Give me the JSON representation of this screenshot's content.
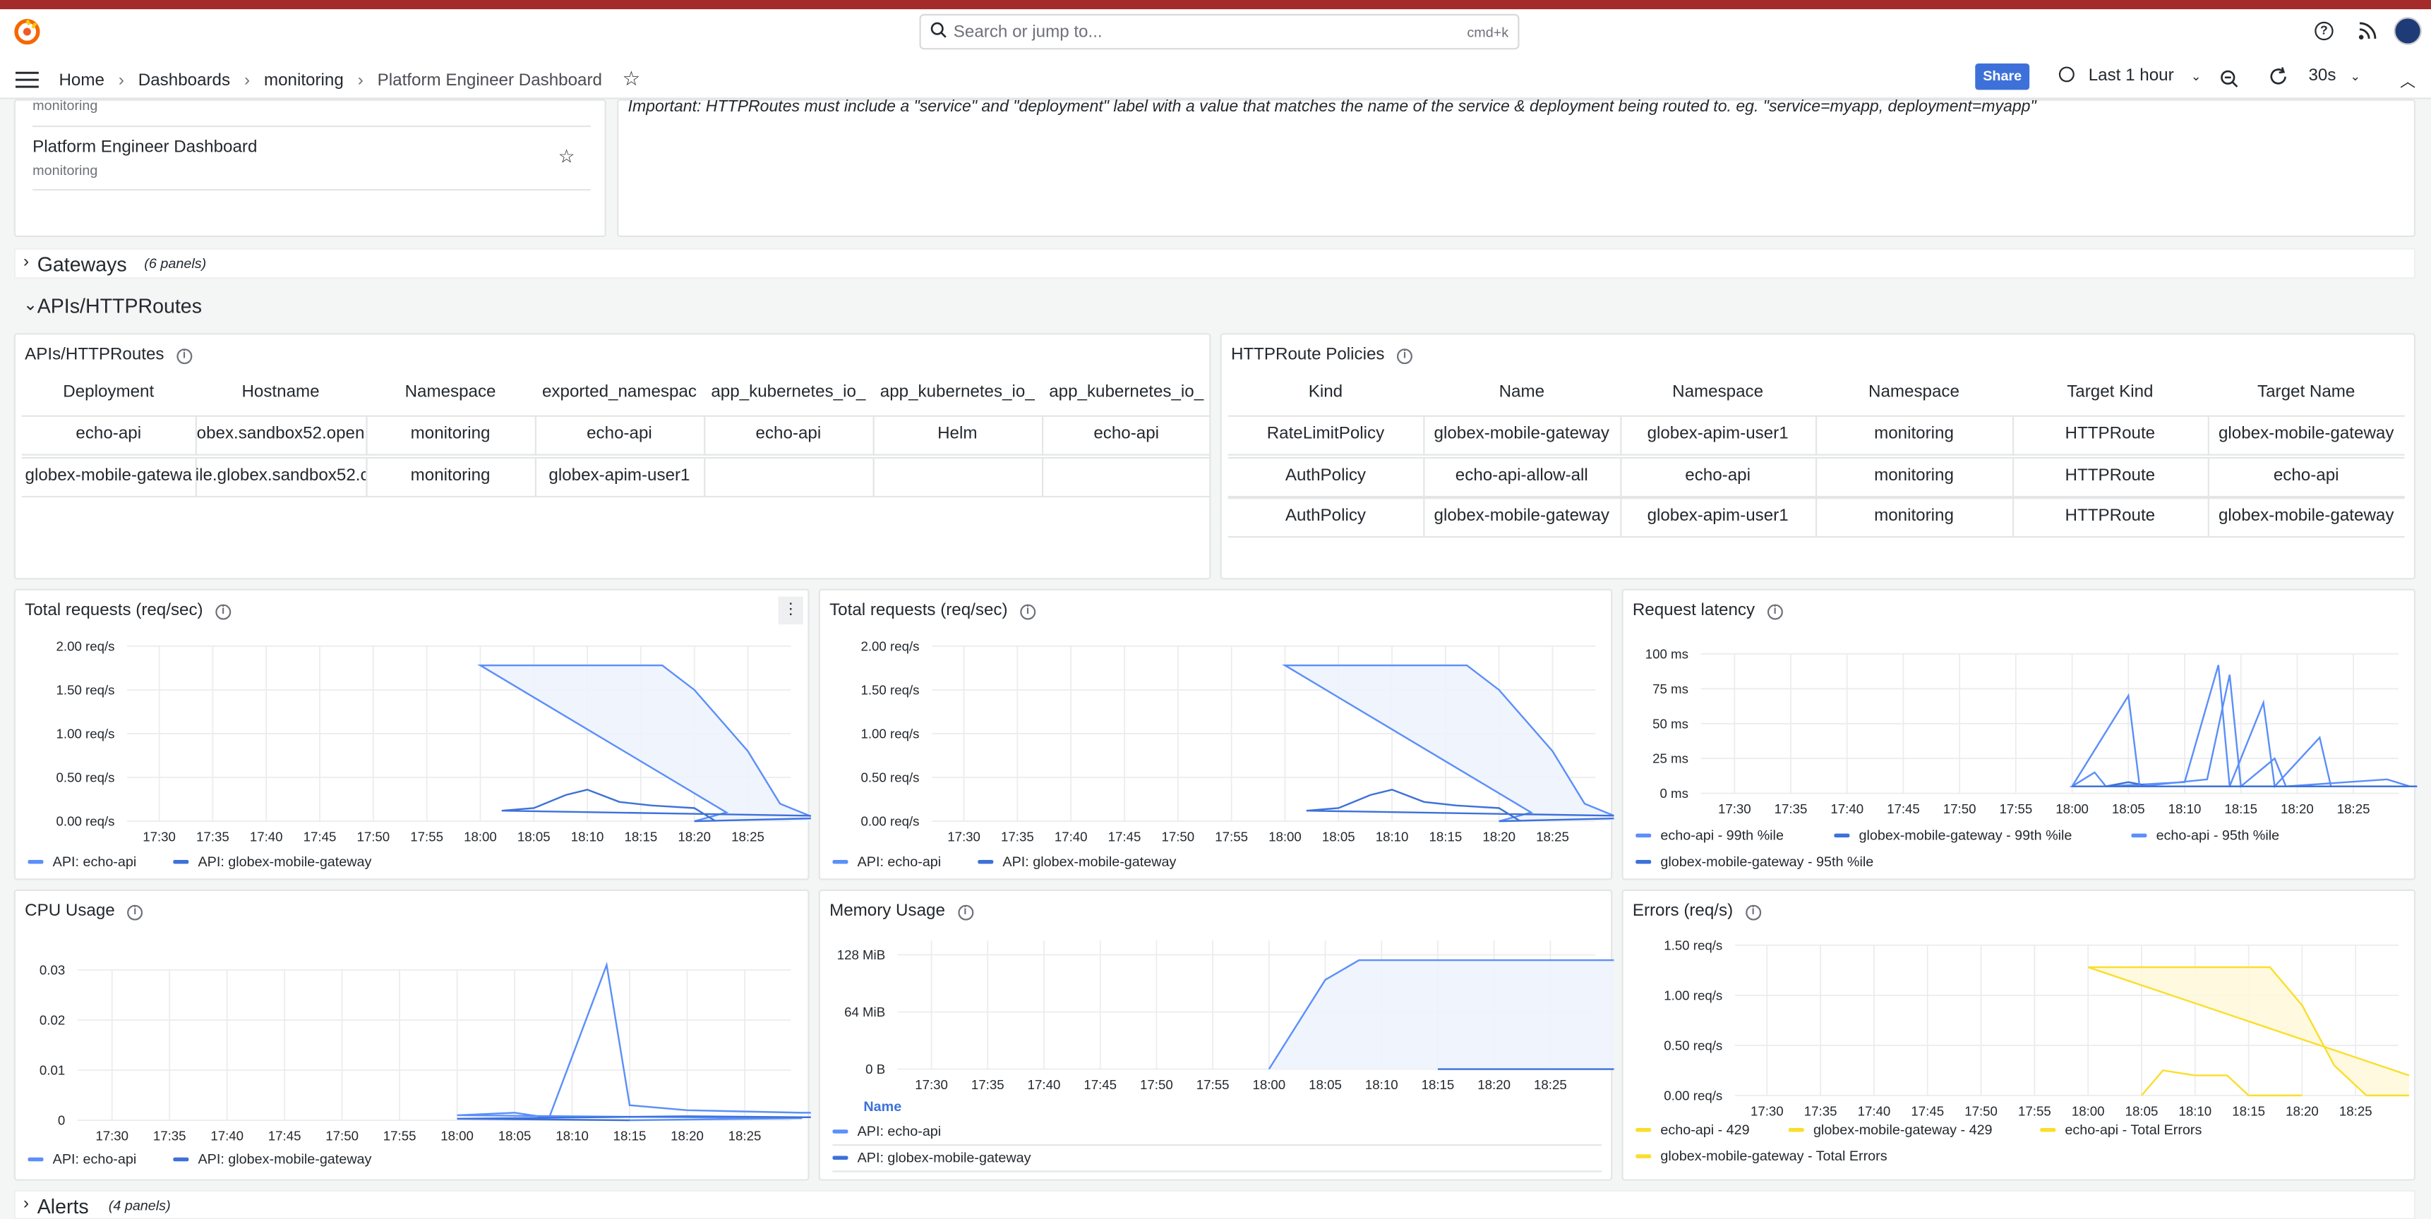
{
  "app": {
    "search_placeholder": "Search or jump to...",
    "search_shortcut": "cmd+k"
  },
  "breadcrumb": [
    "Home",
    "Dashboards",
    "monitoring",
    "Platform Engineer Dashboard"
  ],
  "toolbar": {
    "share": "Share",
    "time_range": "Last 1 hour",
    "refresh": "30s"
  },
  "list_panel": {
    "items": [
      {
        "folder": "monitoring"
      },
      {
        "title": "Platform Engineer Dashboard",
        "folder": "monitoring"
      }
    ]
  },
  "note": "Important: HTTPRoutes must include a \"service\" and \"deployment\" label with a value that matches the name of the service & deployment being routed to. eg. \"service=myapp, deployment=myapp\"",
  "rows": {
    "gateways": {
      "title": "Gateways",
      "count": "(6 panels)"
    },
    "apis": {
      "title": "APIs/HTTPRoutes"
    },
    "alerts": {
      "title": "Alerts",
      "count": "(4 panels)"
    }
  },
  "apis_table": {
    "title": "APIs/HTTPRoutes",
    "columns": [
      "Deployment",
      "Hostname",
      "Namespace",
      "exported_namespac",
      "app_kubernetes_io_",
      "app_kubernetes_io_",
      "app_kubernetes_io_"
    ],
    "rows": [
      [
        "echo-api",
        "obex.sandbox52.open",
        "monitoring",
        "echo-api",
        "echo-api",
        "Helm",
        "echo-api"
      ],
      [
        "globex-mobile-gatewa",
        "ile.globex.sandbox52.c",
        "monitoring",
        "globex-apim-user1",
        "",
        "",
        ""
      ]
    ]
  },
  "policies_table": {
    "title": "HTTPRoute Policies",
    "columns": [
      "Kind",
      "Name",
      "Namespace",
      "Namespace",
      "Target Kind",
      "Target Name"
    ],
    "rows": [
      [
        "RateLimitPolicy",
        "globex-mobile-gateway",
        "globex-apim-user1",
        "monitoring",
        "HTTPRoute",
        "globex-mobile-gateway"
      ],
      [
        "AuthPolicy",
        "echo-api-allow-all",
        "echo-api",
        "monitoring",
        "HTTPRoute",
        "echo-api"
      ],
      [
        "AuthPolicy",
        "globex-mobile-gateway",
        "globex-apim-user1",
        "monitoring",
        "HTTPRoute",
        "globex-mobile-gateway"
      ]
    ]
  },
  "colors": {
    "blue": "#5b8ff9",
    "blue_fill": "#eef3fd",
    "yellow": "#fade2a",
    "yellow_fill": "#fef8dc",
    "grid": "#ececee"
  },
  "chart_data": [
    {
      "id": "req1",
      "type": "line",
      "title": "Total requests (req/sec)",
      "x": [
        "17:30",
        "17:35",
        "17:40",
        "17:45",
        "17:50",
        "17:55",
        "18:00",
        "18:05",
        "18:10",
        "18:15",
        "18:20",
        "18:25"
      ],
      "yticks": [
        "0.00 req/s",
        "0.50 req/s",
        "1.00 req/s",
        "1.50 req/s",
        "2.00 req/s"
      ],
      "ylim": [
        0,
        2
      ],
      "series": [
        {
          "name": "API: echo-api",
          "fill": true,
          "points": [
            [
              17.8,
              0
            ],
            [
              17.83,
              0.1
            ],
            [
              18.0,
              1.78
            ],
            [
              18.17,
              1.78
            ],
            [
              18.2,
              1.5
            ],
            [
              18.25,
              0.8
            ],
            [
              18.28,
              0.2
            ],
            [
              18.32,
              0
            ]
          ]
        },
        {
          "name": "API: globex-mobile-gateway",
          "fill": false,
          "points": [
            [
              17.8,
              0
            ],
            [
              17.97,
              0.05
            ],
            [
              18.02,
              0.12
            ],
            [
              18.05,
              0.15
            ],
            [
              18.08,
              0.3
            ],
            [
              18.1,
              0.36
            ],
            [
              18.13,
              0.22
            ],
            [
              18.16,
              0.18
            ],
            [
              18.2,
              0.15
            ],
            [
              18.22,
              0
            ]
          ]
        }
      ]
    },
    {
      "id": "req2",
      "type": "line",
      "title": "Total requests (req/sec)",
      "x": [
        "17:30",
        "17:35",
        "17:40",
        "17:45",
        "17:50",
        "17:55",
        "18:00",
        "18:05",
        "18:10",
        "18:15",
        "18:20",
        "18:25"
      ],
      "yticks": [
        "0.00 req/s",
        "0.50 req/s",
        "1.00 req/s",
        "1.50 req/s",
        "2.00 req/s"
      ],
      "ylim": [
        0,
        2
      ],
      "series": [
        {
          "name": "API: echo-api",
          "fill": true,
          "points": [
            [
              17.8,
              0
            ],
            [
              17.83,
              0.1
            ],
            [
              18.0,
              1.78
            ],
            [
              18.17,
              1.78
            ],
            [
              18.2,
              1.5
            ],
            [
              18.25,
              0.8
            ],
            [
              18.28,
              0.2
            ],
            [
              18.32,
              0
            ]
          ]
        },
        {
          "name": "API: globex-mobile-gateway",
          "fill": false,
          "points": [
            [
              17.8,
              0
            ],
            [
              17.97,
              0.05
            ],
            [
              18.02,
              0.12
            ],
            [
              18.05,
              0.15
            ],
            [
              18.08,
              0.3
            ],
            [
              18.1,
              0.36
            ],
            [
              18.13,
              0.22
            ],
            [
              18.16,
              0.18
            ],
            [
              18.2,
              0.15
            ],
            [
              18.22,
              0
            ]
          ]
        }
      ]
    },
    {
      "id": "lat",
      "type": "line",
      "title": "Request latency",
      "x": [
        "17:30",
        "17:35",
        "17:40",
        "17:45",
        "17:50",
        "17:55",
        "18:00",
        "18:05",
        "18:10",
        "18:15",
        "18:20",
        "18:25"
      ],
      "yticks": [
        "0 ms",
        "25 ms",
        "50 ms",
        "75 ms",
        "100 ms"
      ],
      "ylim": [
        0,
        100
      ],
      "series": [
        {
          "name": "echo-api - 99th %ile",
          "fill": false,
          "points": [
            [
              17.97,
              5
            ],
            [
              18.0,
              5
            ],
            [
              18.02,
              15
            ],
            [
              18.03,
              5
            ],
            [
              18.1,
              8
            ],
            [
              18.13,
              92
            ],
            [
              18.14,
              5
            ],
            [
              18.17,
              65
            ],
            [
              18.18,
              5
            ],
            [
              18.22,
              40
            ],
            [
              18.23,
              5
            ],
            [
              18.3,
              5
            ],
            [
              18.32,
              5
            ]
          ]
        },
        {
          "name": "globex-mobile-gateway - 99th %ile",
          "fill": false,
          "points": [
            [
              17.98,
              5
            ],
            [
              18.03,
              5
            ],
            [
              18.05,
              8
            ],
            [
              18.07,
              5
            ],
            [
              18.13,
              5
            ],
            [
              18.15,
              5
            ],
            [
              18.2,
              5
            ],
            [
              18.3,
              5
            ]
          ]
        },
        {
          "name": "echo-api - 95th %ile",
          "fill": false,
          "points": [
            [
              18.0,
              5
            ],
            [
              18.05,
              70
            ],
            [
              18.06,
              5
            ],
            [
              18.12,
              10
            ],
            [
              18.14,
              85
            ],
            [
              18.15,
              5
            ],
            [
              18.18,
              25
            ],
            [
              18.19,
              5
            ],
            [
              18.28,
              10
            ],
            [
              18.3,
              5
            ]
          ]
        },
        {
          "name": "globex-mobile-gateway - 95th %ile",
          "fill": false,
          "points": [
            [
              18.0,
              5
            ],
            [
              18.3,
              5
            ]
          ]
        }
      ]
    },
    {
      "id": "cpu",
      "type": "line",
      "title": "CPU Usage",
      "x": [
        "17:30",
        "17:35",
        "17:40",
        "17:45",
        "17:50",
        "17:55",
        "18:00",
        "18:05",
        "18:10",
        "18:15",
        "18:20",
        "18:25"
      ],
      "yticks": [
        "0",
        "0.01",
        "0.02",
        "0.03"
      ],
      "ylim": [
        0,
        0.03
      ],
      "series": [
        {
          "name": "API: echo-api",
          "fill": false,
          "points": [
            [
              17.75,
              0
            ],
            [
              17.9,
              0.0004
            ],
            [
              18.0,
              0.001
            ],
            [
              18.05,
              0.0015
            ],
            [
              18.08,
              0.0005
            ],
            [
              18.13,
              0.031
            ],
            [
              18.15,
              0.003
            ],
            [
              18.2,
              0.002
            ],
            [
              18.3,
              0.0015
            ],
            [
              18.4,
              0.0015
            ],
            [
              18.47,
              0.0015
            ]
          ]
        },
        {
          "name": "API: globex-mobile-gateway",
          "fill": false,
          "points": [
            [
              17.75,
              0
            ],
            [
              18.0,
              0.0003
            ],
            [
              18.08,
              0.0005
            ],
            [
              18.2,
              0.0008
            ],
            [
              18.3,
              0.0006
            ],
            [
              18.4,
              0.0006
            ],
            [
              18.47,
              0.0006
            ]
          ]
        }
      ]
    },
    {
      "id": "mem",
      "type": "line",
      "title": "Memory Usage",
      "x": [
        "17:30",
        "17:35",
        "17:40",
        "17:45",
        "17:50",
        "17:55",
        "18:00",
        "18:05",
        "18:10",
        "18:15",
        "18:20",
        "18:25"
      ],
      "yticks": [
        "0 B",
        "64 MiB",
        "128 MiB"
      ],
      "ylim": [
        0,
        144
      ],
      "legend_header": "Name",
      "series": [
        {
          "name": "API: echo-api",
          "fill": true,
          "points": [
            [
              18.0,
              0
            ],
            [
              18.05,
              100
            ],
            [
              18.08,
              122
            ],
            [
              18.3,
              122
            ],
            [
              18.47,
              122
            ]
          ]
        },
        {
          "name": "API: globex-mobile-gateway",
          "fill": false,
          "points": [
            [
              17.75,
              0
            ],
            [
              18.47,
              0
            ]
          ]
        }
      ]
    },
    {
      "id": "err",
      "type": "line",
      "title": "Errors (req/s)",
      "x": [
        "17:30",
        "17:35",
        "17:40",
        "17:45",
        "17:50",
        "17:55",
        "18:00",
        "18:05",
        "18:10",
        "18:15",
        "18:20",
        "18:25"
      ],
      "yticks": [
        "0.00 req/s",
        "0.50 req/s",
        "1.00 req/s",
        "1.50 req/s"
      ],
      "ylim": [
        0,
        1.5
      ],
      "series": [
        {
          "name": "echo-api - 429",
          "fill": true,
          "points": [
            [
              17.9,
              0.2
            ],
            [
              18.0,
              1.28
            ],
            [
              18.17,
              1.28
            ],
            [
              18.2,
              0.9
            ],
            [
              18.23,
              0.3
            ],
            [
              18.26,
              0
            ]
          ]
        },
        {
          "name": "globex-mobile-gateway - 429",
          "fill": false,
          "points": [
            [
              18.05,
              0
            ],
            [
              18.07,
              0.25
            ],
            [
              18.1,
              0.2
            ],
            [
              18.13,
              0.2
            ],
            [
              18.15,
              0
            ]
          ]
        },
        {
          "name": "echo-api - Total Errors",
          "fill": false,
          "points": [
            [
              18.26,
              0
            ],
            [
              18.3,
              0
            ]
          ]
        },
        {
          "name": "globex-mobile-gateway - Total Errors",
          "fill": false,
          "points": [
            [
              18.15,
              0
            ],
            [
              18.2,
              0
            ]
          ]
        }
      ]
    }
  ]
}
